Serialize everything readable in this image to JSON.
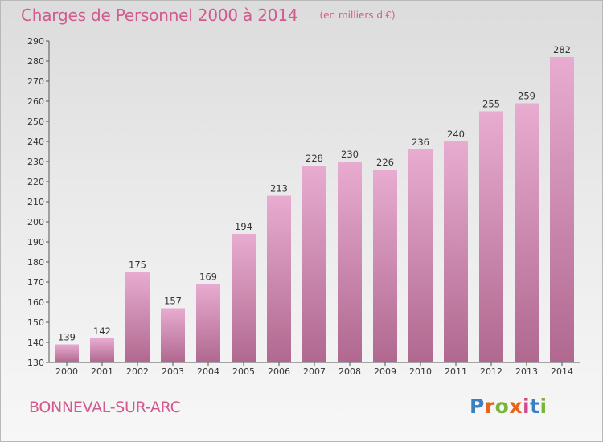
{
  "title": "Charges de Personnel 2000 à 2014",
  "unit_note": "(en milliers d'€)",
  "commune": "BONNEVAL-SUR-ARC",
  "logo": {
    "text": "Proxiti",
    "colors": [
      "#3a7fc1",
      "#e8641b",
      "#7ab539",
      "#e8641b",
      "#d14b8f",
      "#3a7fc1",
      "#7ab539"
    ]
  },
  "colors": {
    "accent": "#d15a8e",
    "bar_top": "#e8acd0",
    "bar_bottom": "#b0688f"
  },
  "chart_data": {
    "type": "bar",
    "categories": [
      "2000",
      "2001",
      "2002",
      "2003",
      "2004",
      "2005",
      "2006",
      "2007",
      "2008",
      "2009",
      "2010",
      "2011",
      "2012",
      "2013",
      "2014"
    ],
    "values": [
      139,
      142,
      175,
      157,
      169,
      194,
      213,
      228,
      230,
      226,
      236,
      240,
      255,
      259,
      282
    ],
    "ylim": [
      130,
      290
    ],
    "yticks": [
      130,
      140,
      150,
      160,
      170,
      180,
      190,
      200,
      210,
      220,
      230,
      240,
      250,
      260,
      270,
      280,
      290
    ],
    "grid": false,
    "title": "Charges de Personnel 2000 à 2014",
    "xlabel": "",
    "ylabel": ""
  }
}
